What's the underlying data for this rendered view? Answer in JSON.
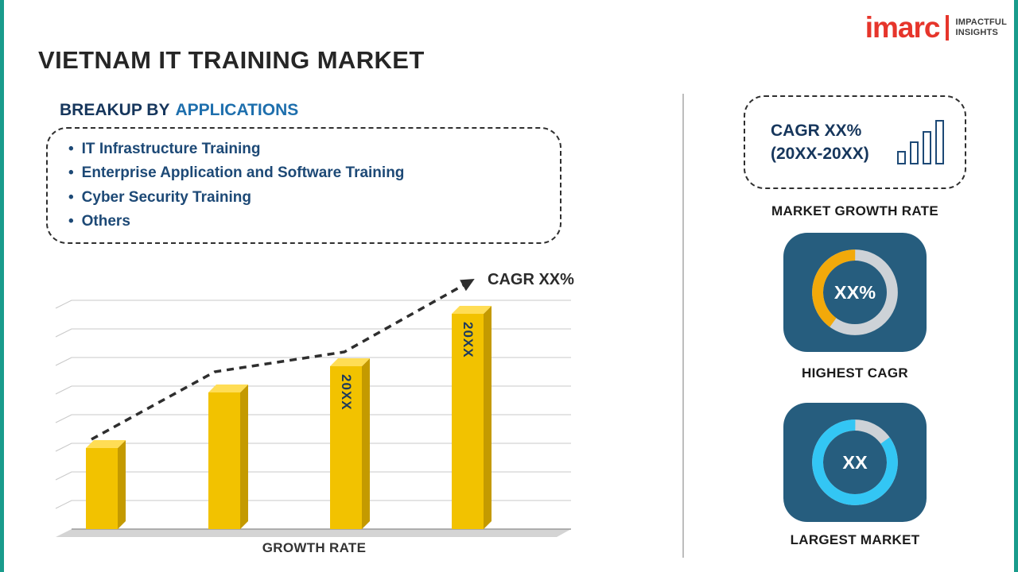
{
  "page": {
    "title": "VIETNAM IT TRAINING MARKET"
  },
  "logo": {
    "brand": "imarc",
    "tagline_line1": "IMPACTFUL",
    "tagline_line2": "INSIGHTS"
  },
  "breakup": {
    "heading_prefix": "BREAKUP BY",
    "heading_highlight": "APPLICATIONS",
    "items": [
      "IT Infrastructure Training",
      "Enterprise Application and Software Training",
      "Cyber Security Training",
      "Others"
    ]
  },
  "chart_data": [
    {
      "type": "bar",
      "title": "",
      "xlabel": "GROWTH RATE",
      "ylabel": "",
      "categories": [
        "",
        "",
        "20XX",
        "20XX"
      ],
      "bar_labels": [
        "",
        "",
        "20XX",
        "20XX"
      ],
      "values": [
        31,
        52,
        62,
        82
      ],
      "values_note": "relative bar heights; no numeric axis shown",
      "bar_color": "#F2C200",
      "annotation": "CAGR XX%",
      "trend": "dashed rising arrow",
      "grid": true
    },
    {
      "type": "pie",
      "style": "donut",
      "label": "HIGHEST CAGR",
      "center_text": "XX%",
      "slices": [
        {
          "name": "highlighted-share",
          "fraction": 0.4,
          "color": "#F2A90A"
        },
        {
          "name": "remainder",
          "fraction": 0.6,
          "color": "#CDD2D7"
        }
      ]
    },
    {
      "type": "pie",
      "style": "donut",
      "label": "LARGEST MARKET",
      "center_text": "XX",
      "slices": [
        {
          "name": "highlighted-share",
          "fraction": 0.85,
          "color": "#33C6F4"
        },
        {
          "name": "remainder",
          "fraction": 0.15,
          "color": "#CDD2D7"
        }
      ]
    }
  ],
  "right_panel": {
    "cagr_card": {
      "line1": "CAGR XX%",
      "line2": "(20XX-20XX)"
    },
    "market_growth_label": "MARKET GROWTH RATE"
  },
  "colors": {
    "accent_teal": "#199C8C",
    "navy_card": "#265D7E",
    "gold_bar": "#F2C200",
    "brand_red": "#E6352B"
  }
}
